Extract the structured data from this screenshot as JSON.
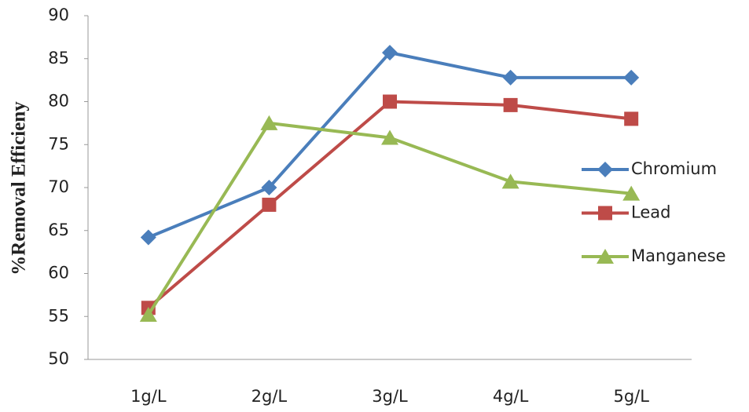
{
  "chart_data": {
    "type": "line",
    "y_label": "%Removal Efficieny",
    "categories": [
      "1g/L",
      "2g/L",
      "3g/L",
      "4g/L",
      "5g/L"
    ],
    "series": [
      {
        "name": "Chromium",
        "color": "#4a7ebb",
        "marker": "diamond",
        "values": [
          64.2,
          70,
          85.7,
          82.8,
          82.8
        ]
      },
      {
        "name": "Lead",
        "color": "#be4b48",
        "marker": "square",
        "values": [
          56,
          68,
          80,
          79.6,
          78
        ]
      },
      {
        "name": "Manganese",
        "color": "#98b954",
        "marker": "triangle",
        "values": [
          55.2,
          77.5,
          75.8,
          70.7,
          69.3
        ]
      }
    ],
    "ylim": [
      50,
      90
    ],
    "yticks": [
      50,
      55,
      60,
      65,
      70,
      75,
      80,
      85,
      90
    ],
    "grid": false,
    "legend": "right"
  }
}
